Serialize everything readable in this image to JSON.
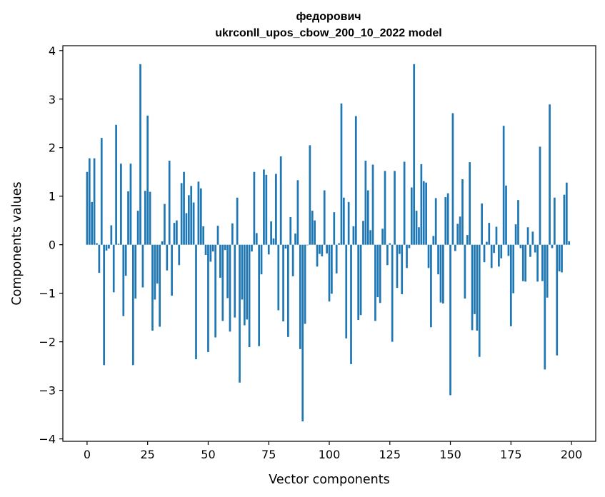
{
  "chart_data": {
    "type": "bar",
    "title_line1": "федорович",
    "title_line2": "ukrconll_upos_cbow_200_10_2022 model",
    "xlabel": "Vector components",
    "ylabel": "Components values",
    "xlim": [
      -10,
      210
    ],
    "ylim": [
      -4.05,
      4.1
    ],
    "xticks": [
      0,
      25,
      50,
      75,
      100,
      125,
      150,
      175,
      200
    ],
    "xtick_labels": [
      "0",
      "25",
      "50",
      "75",
      "100",
      "125",
      "150",
      "175",
      "200"
    ],
    "yticks": [
      -4,
      -3,
      -2,
      -1,
      0,
      1,
      2,
      3,
      4
    ],
    "ytick_labels": [
      "−4",
      "−3",
      "−2",
      "−1",
      "0",
      "1",
      "2",
      "3",
      "4"
    ],
    "bar_color": "#1f77b4",
    "grid": false,
    "values": [
      1.5,
      1.78,
      0.88,
      1.78,
      0.03,
      -0.58,
      2.2,
      -2.48,
      -0.12,
      -0.08,
      0.4,
      -0.98,
      2.47,
      0.02,
      1.67,
      -1.47,
      -0.64,
      1.1,
      1.67,
      -2.48,
      -1.11,
      0.7,
      3.72,
      -0.88,
      1.11,
      2.66,
      1.09,
      -1.77,
      -1.13,
      -0.8,
      -1.69,
      0.07,
      0.84,
      -0.53,
      1.73,
      -1.05,
      0.45,
      0.5,
      -0.42,
      1.27,
      1.5,
      0.65,
      1.02,
      1.21,
      0.87,
      -2.36,
      1.3,
      1.16,
      0.38,
      -0.21,
      -2.21,
      -0.35,
      -0.14,
      -1.91,
      0.39,
      -0.68,
      -1.57,
      -0.11,
      -1.1,
      -1.79,
      0.44,
      -1.5,
      0.97,
      -2.84,
      -1.13,
      -1.66,
      -1.54,
      -2.11,
      -0.14,
      1.5,
      0.24,
      -2.09,
      -0.61,
      1.55,
      1.44,
      -0.2,
      0.48,
      0.13,
      1.46,
      -1.35,
      1.82,
      -1.58,
      -0.08,
      -1.9,
      0.57,
      -0.65,
      0.23,
      1.33,
      -2.15,
      -3.64,
      -1.63,
      -0.01,
      2.05,
      0.7,
      0.5,
      -0.45,
      -0.19,
      -0.24,
      1.12,
      -0.18,
      -1.17,
      -1.01,
      0.67,
      -0.59,
      0.03,
      2.91,
      0.97,
      -1.93,
      0.88,
      -2.46,
      0.38,
      2.65,
      -1.55,
      -1.45,
      0.49,
      1.73,
      1.12,
      0.3,
      1.65,
      -1.57,
      -1.08,
      -1.2,
      0.33,
      1.52,
      -0.42,
      0.03,
      -2.0,
      1.52,
      -0.89,
      -0.19,
      -1.02,
      1.71,
      -0.48,
      -0.07,
      1.18,
      3.72,
      0.7,
      0.36,
      1.66,
      1.31,
      1.28,
      -0.48,
      -1.7,
      0.18,
      0.96,
      -0.61,
      -1.19,
      -1.21,
      0.98,
      1.06,
      -3.1,
      2.71,
      -0.13,
      0.43,
      0.58,
      1.35,
      -1.11,
      0.2,
      1.7,
      -1.76,
      -1.43,
      -1.77,
      -2.31,
      0.85,
      -0.36,
      0.06,
      0.45,
      -0.48,
      -0.17,
      0.37,
      -0.45,
      -0.28,
      2.45,
      1.22,
      -0.23,
      -1.68,
      -1.0,
      0.42,
      0.92,
      -0.07,
      -0.75,
      -0.76,
      0.36,
      -0.25,
      0.27,
      -0.16,
      -0.76,
      2.02,
      -0.75,
      -2.57,
      -1.09,
      2.89,
      -0.07,
      0.97,
      -2.28,
      -0.55,
      -0.57,
      1.03,
      1.28,
      0.07
    ]
  }
}
